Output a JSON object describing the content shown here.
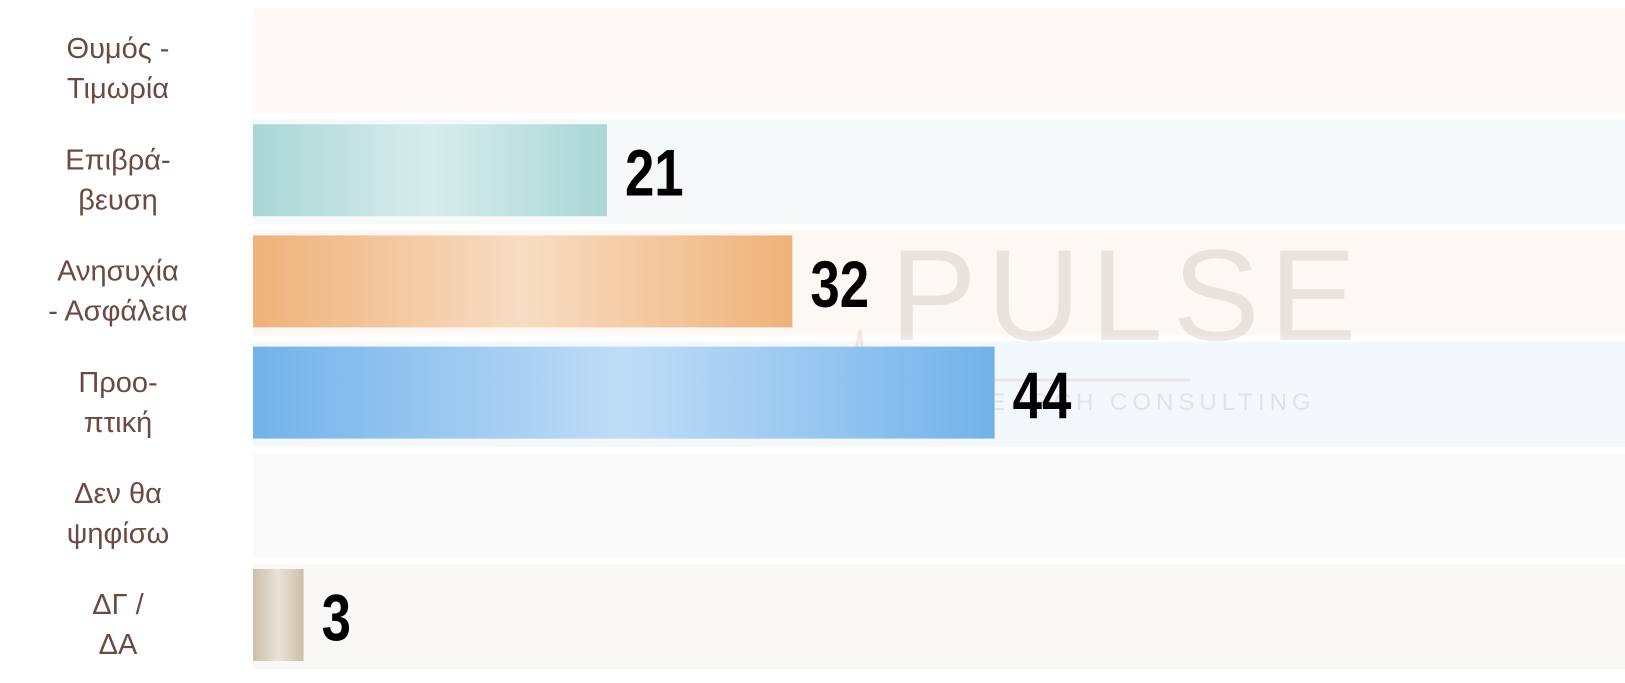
{
  "chart_data": {
    "type": "hbar",
    "watermark": {
      "title": "PULSE",
      "subtitle": "RESEARCH CONSULTING"
    },
    "categories": [
      [
        "Θυμός -",
        "Τιμωρία"
      ],
      [
        "Επιβρά-",
        "βευση"
      ],
      [
        "Ανησυχία",
        "- Ασφάλεια"
      ],
      [
        "Προο-",
        "πτική"
      ],
      [
        "Δεν θα",
        "ψηφίσω"
      ],
      [
        "ΔΓ /",
        "ΔΑ"
      ]
    ],
    "values": [
      null,
      21,
      32,
      44,
      null,
      3
    ],
    "colors": [
      "#e8b8a8",
      "#a9d6d6",
      "#eeb27a",
      "#72b2ea",
      "#d8d8d8",
      "#cdbfa9"
    ],
    "row_colors": [
      "#fdf7f5",
      "#f5f9f9",
      "#fdf8f3",
      "#f3f8fd",
      "#fbfafa",
      "#faf8f6"
    ],
    "xlim": [
      0,
      81.4
    ]
  }
}
